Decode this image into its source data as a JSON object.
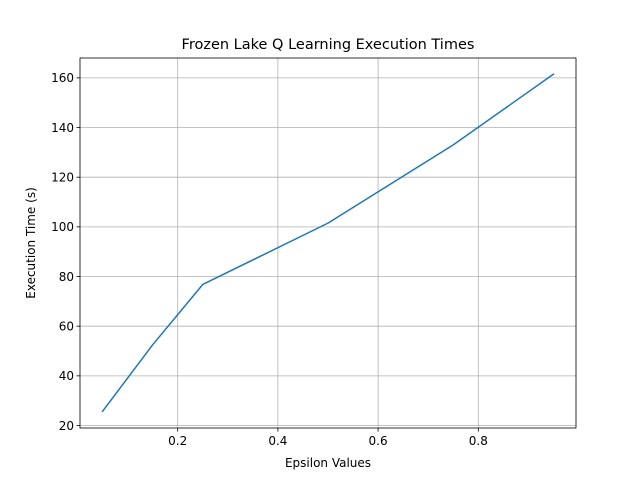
{
  "chart_data": {
    "type": "line",
    "title": "Frozen Lake Q Learning Execution Times",
    "xlabel": "Epsilon Values",
    "ylabel": "Execution Time (s)",
    "xlim": [
      0.005,
      0.995
    ],
    "ylim": [
      19,
      168
    ],
    "xticks": [
      0.2,
      0.4,
      0.6,
      0.8
    ],
    "xtick_labels": [
      "0.2",
      "0.4",
      "0.6",
      "0.8"
    ],
    "yticks": [
      20,
      40,
      60,
      80,
      100,
      120,
      140,
      160
    ],
    "ytick_labels": [
      "20",
      "40",
      "60",
      "80",
      "100",
      "120",
      "140",
      "160"
    ],
    "grid": true,
    "series": [
      {
        "color": "#1f77b4",
        "x": [
          0.05,
          0.15,
          0.25,
          0.5,
          0.75,
          0.95
        ],
        "y": [
          25.7,
          52.5,
          76.8,
          101.5,
          133.0,
          161.5
        ]
      }
    ]
  }
}
